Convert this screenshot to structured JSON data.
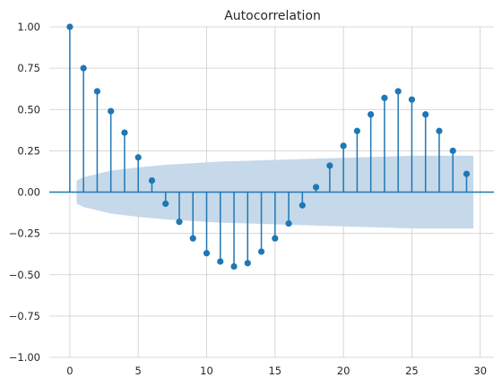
{
  "chart_data": {
    "type": "stem",
    "title": "Autocorrelation",
    "xlabel": "",
    "ylabel": "",
    "xlim": [
      -1.5,
      31
    ],
    "ylim": [
      -1.0,
      1.0
    ],
    "xticks": [
      "0",
      "5",
      "10",
      "15",
      "20",
      "25",
      "30"
    ],
    "xtick_values": [
      0,
      5,
      10,
      15,
      20,
      25,
      30
    ],
    "yticks": [
      "1.00",
      "0.75",
      "0.50",
      "0.25",
      "0.00",
      "−0.25",
      "−0.50",
      "−0.75",
      "−1.00"
    ],
    "ytick_values": [
      1.0,
      0.75,
      0.5,
      0.25,
      0.0,
      -0.25,
      -0.5,
      -0.75,
      -1.0
    ],
    "grid": true,
    "series": [
      {
        "lags": [
          0,
          1,
          2,
          3,
          4,
          5,
          6,
          7,
          8,
          9,
          10,
          11,
          12,
          13,
          14,
          15,
          16,
          17,
          18,
          19,
          20,
          21,
          22,
          23,
          24,
          25,
          26,
          27,
          28,
          29
        ],
        "values": [
          1.0,
          0.75,
          0.61,
          0.49,
          0.36,
          0.21,
          0.07,
          -0.07,
          -0.18,
          -0.28,
          -0.37,
          -0.42,
          -0.45,
          -0.43,
          -0.36,
          -0.28,
          -0.19,
          -0.08,
          0.03,
          0.16,
          0.28,
          0.37,
          0.47,
          0.57,
          0.61,
          0.56,
          0.47,
          0.37,
          0.25,
          0.11
        ]
      }
    ],
    "confidence_band": {
      "lags": [
        0.5,
        1,
        2,
        3,
        5,
        7,
        9,
        11,
        13,
        15,
        17,
        19,
        21,
        23,
        25,
        27,
        29.5
      ],
      "upper": [
        0.07,
        0.09,
        0.11,
        0.13,
        0.15,
        0.165,
        0.175,
        0.185,
        0.19,
        0.195,
        0.2,
        0.205,
        0.21,
        0.215,
        0.22,
        0.22,
        0.22
      ]
    },
    "colors": {
      "stem": "#1f77b4",
      "band": "#c5d9ea",
      "grid": "#cccccc",
      "zero_line": "#1f77b4"
    }
  }
}
